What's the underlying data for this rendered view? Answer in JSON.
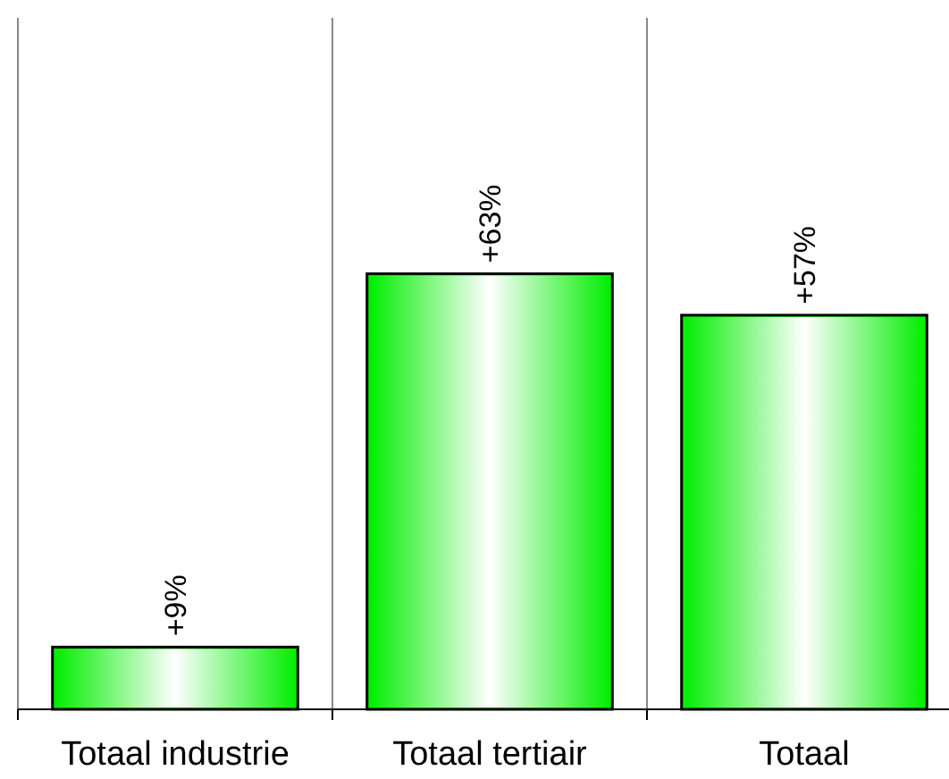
{
  "chart_data": {
    "type": "bar",
    "categories": [
      "Totaal industrie",
      "Totaal tertiair",
      "Totaal"
    ],
    "values": [
      9,
      63,
      57
    ],
    "value_labels": [
      "+9%",
      "+63%",
      "+57%"
    ],
    "color": "#00ee00",
    "ylim": [
      0,
      100
    ],
    "grid": "x",
    "tick_labels": "x"
  }
}
